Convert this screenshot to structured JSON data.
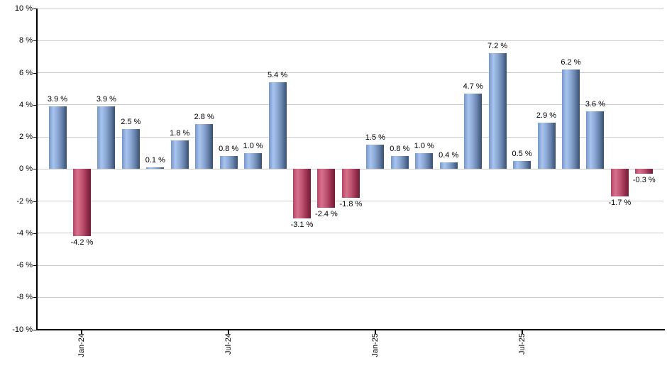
{
  "chart_data": {
    "type": "bar",
    "title": "",
    "xlabel": "",
    "ylabel": "",
    "ylim": [
      -10,
      10
    ],
    "y_tick_step": 2,
    "grid": true,
    "legend": "none",
    "y_ticks": [
      "10 %",
      "8 %",
      "6 %",
      "4 %",
      "2 %",
      "0 %",
      "-2 %",
      "-4 %",
      "-6 %",
      "-8 %",
      "-10 %"
    ],
    "x_ticks": [
      {
        "index": 1,
        "label": "Jan-24"
      },
      {
        "index": 7,
        "label": "Jul-24"
      },
      {
        "index": 13,
        "label": "Jan-25"
      },
      {
        "index": 19,
        "label": "Jul-25"
      }
    ],
    "points": [
      {
        "value": 3.9,
        "label": "3.9 %"
      },
      {
        "value": -4.2,
        "label": "-4.2 %"
      },
      {
        "value": 3.9,
        "label": "3.9 %"
      },
      {
        "value": 2.5,
        "label": "2.5 %"
      },
      {
        "value": 0.1,
        "label": "0.1 %"
      },
      {
        "value": 1.8,
        "label": "1.8 %"
      },
      {
        "value": 2.8,
        "label": "2.8 %"
      },
      {
        "value": 0.8,
        "label": "0.8 %"
      },
      {
        "value": 1.0,
        "label": "1.0 %"
      },
      {
        "value": 5.4,
        "label": "5.4 %"
      },
      {
        "value": -3.1,
        "label": "-3.1 %"
      },
      {
        "value": -2.4,
        "label": "-2.4 %"
      },
      {
        "value": -1.8,
        "label": "-1.8 %"
      },
      {
        "value": 1.5,
        "label": "1.5 %"
      },
      {
        "value": 0.8,
        "label": "0.8 %"
      },
      {
        "value": 1.0,
        "label": "1.0 %"
      },
      {
        "value": 0.4,
        "label": "0.4 %"
      },
      {
        "value": 4.7,
        "label": "4.7 %"
      },
      {
        "value": 7.2,
        "label": "7.2 %"
      },
      {
        "value": 0.5,
        "label": "0.5 %"
      },
      {
        "value": 2.9,
        "label": "2.9 %"
      },
      {
        "value": 6.2,
        "label": "6.2 %"
      },
      {
        "value": 3.6,
        "label": "3.6 %"
      },
      {
        "value": -1.7,
        "label": "-1.7 %"
      },
      {
        "value": -0.3,
        "label": "-0.3 %"
      }
    ]
  },
  "colors": {
    "positive_bar_gradient": [
      "#7497cb",
      "#a8c4ee",
      "#8aa7d3",
      "#6480a8",
      "#374e70"
    ],
    "negative_bar_gradient": [
      "#bc4164",
      "#d4718b",
      "#c05573",
      "#9d3251",
      "#6e1c37"
    ],
    "gridline": "#cccccc",
    "axis": "#000000",
    "label_text": "#000000",
    "background": "#ffffff"
  }
}
